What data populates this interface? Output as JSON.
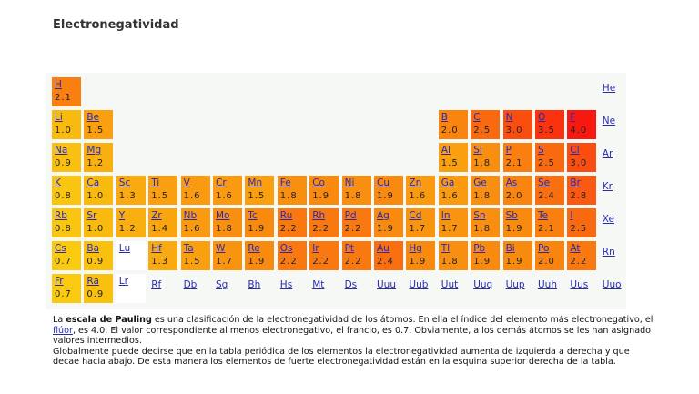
{
  "header": {
    "title": "Electronegatividad"
  },
  "table": {
    "rows": [
      [
        {
          "symbol": "H",
          "value": "2.1"
        },
        null,
        null,
        null,
        null,
        null,
        null,
        null,
        null,
        null,
        null,
        null,
        null,
        null,
        null,
        null,
        null,
        {
          "symbol": "He"
        }
      ],
      [
        {
          "symbol": "Li",
          "value": "1.0"
        },
        {
          "symbol": "Be",
          "value": "1.5"
        },
        null,
        null,
        null,
        null,
        null,
        null,
        null,
        null,
        null,
        null,
        {
          "symbol": "B",
          "value": "2.0"
        },
        {
          "symbol": "C",
          "value": "2.5"
        },
        {
          "symbol": "N",
          "value": "3.0"
        },
        {
          "symbol": "O",
          "value": "3.5"
        },
        {
          "symbol": "F",
          "value": "4.0"
        },
        {
          "symbol": "Ne"
        }
      ],
      [
        {
          "symbol": "Na",
          "value": "0.9"
        },
        {
          "symbol": "Mg",
          "value": "1.2"
        },
        null,
        null,
        null,
        null,
        null,
        null,
        null,
        null,
        null,
        null,
        {
          "symbol": "Al",
          "value": "1.5"
        },
        {
          "symbol": "Si",
          "value": "1.8"
        },
        {
          "symbol": "P",
          "value": "2.1"
        },
        {
          "symbol": "S",
          "value": "2.5"
        },
        {
          "symbol": "Cl",
          "value": "3.0"
        },
        {
          "symbol": "Ar"
        }
      ],
      [
        {
          "symbol": "K",
          "value": "0.8"
        },
        {
          "symbol": "Ca",
          "value": "1.0"
        },
        {
          "symbol": "Sc",
          "value": "1.3"
        },
        {
          "symbol": "Ti",
          "value": "1.5"
        },
        {
          "symbol": "V",
          "value": "1.6"
        },
        {
          "symbol": "Cr",
          "value": "1.6"
        },
        {
          "symbol": "Mn",
          "value": "1.5"
        },
        {
          "symbol": "Fe",
          "value": "1.8"
        },
        {
          "symbol": "Co",
          "value": "1.9"
        },
        {
          "symbol": "Ni",
          "value": "1.8"
        },
        {
          "symbol": "Cu",
          "value": "1.9"
        },
        {
          "symbol": "Zn",
          "value": "1.6"
        },
        {
          "symbol": "Ga",
          "value": "1.6"
        },
        {
          "symbol": "Ge",
          "value": "1.8"
        },
        {
          "symbol": "As",
          "value": "2.0"
        },
        {
          "symbol": "Se",
          "value": "2.4"
        },
        {
          "symbol": "Br",
          "value": "2.8"
        },
        {
          "symbol": "Kr"
        }
      ],
      [
        {
          "symbol": "Rb",
          "value": "0.8"
        },
        {
          "symbol": "Sr",
          "value": "1.0"
        },
        {
          "symbol": "Y",
          "value": "1.2"
        },
        {
          "symbol": "Zr",
          "value": "1.4"
        },
        {
          "symbol": "Nb",
          "value": "1.6"
        },
        {
          "symbol": "Mo",
          "value": "1.8"
        },
        {
          "symbol": "Tc",
          "value": "1.9"
        },
        {
          "symbol": "Ru",
          "value": "2.2"
        },
        {
          "symbol": "Rh",
          "value": "2.2"
        },
        {
          "symbol": "Pd",
          "value": "2.2"
        },
        {
          "symbol": "Ag",
          "value": "1.9"
        },
        {
          "symbol": "Cd",
          "value": "1.7"
        },
        {
          "symbol": "In",
          "value": "1.7"
        },
        {
          "symbol": "Sn",
          "value": "1.8"
        },
        {
          "symbol": "Sb",
          "value": "1.9"
        },
        {
          "symbol": "Te",
          "value": "2.1"
        },
        {
          "symbol": "I",
          "value": "2.5"
        },
        {
          "symbol": "Xe"
        }
      ],
      [
        {
          "symbol": "Cs",
          "value": "0.7"
        },
        {
          "symbol": "Ba",
          "value": "0.9"
        },
        {
          "symbol": "Lu"
        },
        {
          "symbol": "Hf",
          "value": "1.3"
        },
        {
          "symbol": "Ta",
          "value": "1.5"
        },
        {
          "symbol": "W",
          "value": "1.7"
        },
        {
          "symbol": "Re",
          "value": "1.9"
        },
        {
          "symbol": "Os",
          "value": "2.2"
        },
        {
          "symbol": "Ir",
          "value": "2.2"
        },
        {
          "symbol": "Pt",
          "value": "2.2"
        },
        {
          "symbol": "Au",
          "value": "2.4"
        },
        {
          "symbol": "Hg",
          "value": "1.9"
        },
        {
          "symbol": "Tl",
          "value": "1.8"
        },
        {
          "symbol": "Pb",
          "value": "1.9"
        },
        {
          "symbol": "Bi",
          "value": "1.9"
        },
        {
          "symbol": "Po",
          "value": "2.0"
        },
        {
          "symbol": "At",
          "value": "2.2"
        },
        {
          "symbol": "Rn"
        }
      ],
      [
        {
          "symbol": "Fr",
          "value": "0.7"
        },
        {
          "symbol": "Ra",
          "value": "0.9"
        },
        {
          "symbol": "Lr"
        },
        {
          "symbol": "Rf"
        },
        {
          "symbol": "Db"
        },
        {
          "symbol": "Sg"
        },
        {
          "symbol": "Bh"
        },
        {
          "symbol": "Hs"
        },
        {
          "symbol": "Mt"
        },
        {
          "symbol": "Ds"
        },
        {
          "symbol": "Uuu"
        },
        {
          "symbol": "Uub"
        },
        {
          "symbol": "Uut"
        },
        {
          "symbol": "Uuq"
        },
        {
          "symbol": "Uup"
        },
        {
          "symbol": "Uuh"
        },
        {
          "symbol": "Uus"
        },
        {
          "symbol": "Uuo"
        }
      ]
    ]
  },
  "description": {
    "paragraphs": [
      [
        "La ",
        "escala de Pauling",
        " es una clasificación de la electronegatividad de los átomos. En ella el índice del elemento más electronegativo, el ",
        "flúor",
        ", es 4.0. El valor correspondiente al menos electronegativo, el francio, es 0.7. Obviamente, a los demás átomos se les han asignado valores intermedios."
      ],
      [
        "Globalmente puede decirse que en la tabla periódica de los elementos la electronegatividad aumenta de izquierda a derecha y que decae hacia abajo. De esta manera los elementos de fuerte electronegatividad están en la esquina superior derecha de la tabla."
      ]
    ]
  }
}
